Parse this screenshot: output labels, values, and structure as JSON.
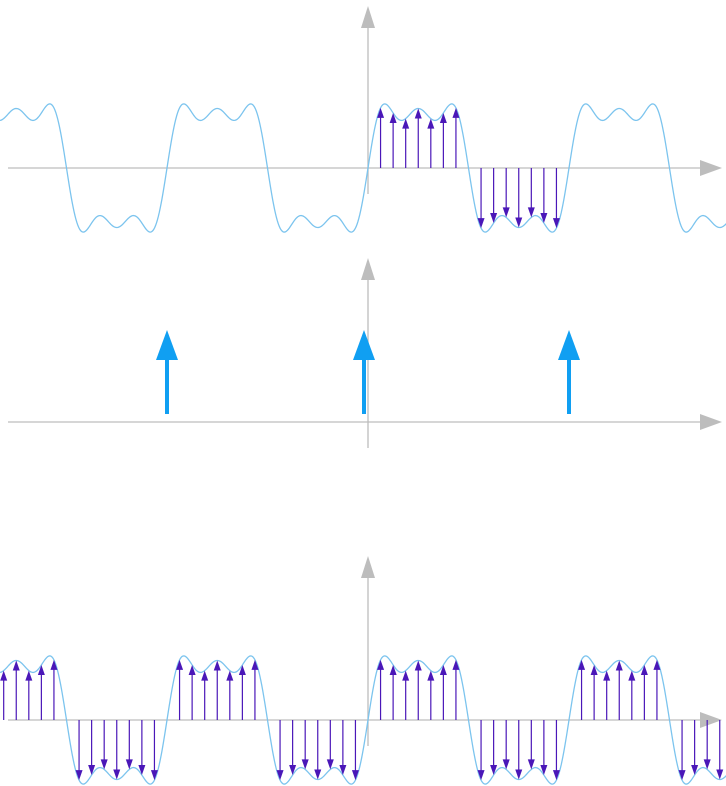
{
  "colors": {
    "axis": "#bdbdbd",
    "curve": "#7cc4ee",
    "sample": "#4a17b8",
    "impulse": "#109ff2",
    "background": "#ffffff"
  },
  "chart_data": [
    {
      "type": "line",
      "role": "signal-with-one-period-sampled",
      "signal": "square-wave-partial-fourier-sum",
      "harmonics": [
        1,
        3,
        5
      ],
      "x_range": [
        -2.05,
        2.05
      ],
      "period": 1,
      "sampled_x_range": [
        0,
        1.0
      ],
      "sample_spacing": 0.0625,
      "grid": false
    },
    {
      "type": "impulse-train",
      "role": "periodic-impulse-train",
      "impulse_x": [
        -1,
        0,
        1
      ],
      "impulse_height": 1,
      "grid": false
    },
    {
      "type": "line",
      "role": "periodic-samples",
      "signal": "square-wave-partial-fourier-sum",
      "harmonics": [
        1,
        3,
        5
      ],
      "x_range": [
        -2.05,
        2.05
      ],
      "period": 1,
      "sampled_x_range": [
        -2.0,
        2.05
      ],
      "sample_spacing": 0.0625,
      "grid": false
    }
  ]
}
